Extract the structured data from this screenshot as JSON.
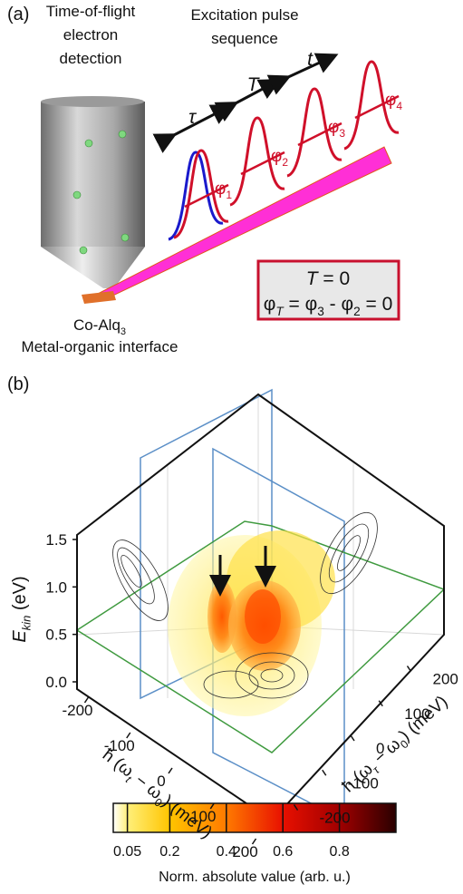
{
  "panel_a": {
    "label": "(a)",
    "detector_label": [
      "Time-of-flight",
      "electron",
      "detection"
    ],
    "pulse_label": [
      "Excitation pulse",
      "sequence"
    ],
    "delays": [
      "τ",
      "T",
      "t"
    ],
    "pulses": [
      {
        "symbol": "φ",
        "index": "1"
      },
      {
        "symbol": "φ",
        "index": "2"
      },
      {
        "symbol": "φ",
        "index": "3"
      },
      {
        "symbol": "φ",
        "index": "4"
      }
    ],
    "condition": {
      "line1": [
        {
          "italic": "T"
        },
        {
          "text": " = 0"
        }
      ],
      "line2": [
        {
          "text": "φ"
        },
        {
          "sub": "T"
        },
        {
          "text": " = φ"
        },
        {
          "sub": "3"
        },
        {
          "text": " - φ"
        },
        {
          "sub": "2"
        },
        {
          "text": " = 0"
        }
      ]
    },
    "sample_label": [
      {
        "text": "Co-Alq"
      },
      {
        "sub": "3"
      }
    ],
    "interface_label": "Metal-organic interface"
  },
  "panel_b": {
    "label": "(b)",
    "z_axis": {
      "label": [
        {
          "italic": "E"
        },
        {
          "sub": "kin"
        },
        {
          "text": " (eV)"
        }
      ],
      "range": [
        0,
        1.5
      ],
      "ticks": [
        {
          "value": 0,
          "label": "0.0"
        },
        {
          "value": 0.5,
          "label": "0.5"
        },
        {
          "value": 1,
          "label": "1.0"
        },
        {
          "value": 1.5,
          "label": "1.5"
        }
      ]
    },
    "t_axis": {
      "label": [
        {
          "text": "ħ (ω"
        },
        {
          "sub": "t"
        },
        {
          "text": " − ω"
        },
        {
          "sub": "0"
        },
        {
          "text": ") (meV)"
        }
      ],
      "ticks": [
        -200,
        -100,
        0,
        100,
        200
      ]
    },
    "tau_axis": {
      "label": [
        {
          "text": "ħ (ω"
        },
        {
          "sub": "τ"
        },
        {
          "text": " − ω"
        },
        {
          "sub": "0"
        },
        {
          "text": ") (meV)"
        }
      ],
      "ticks": [
        -200,
        -100,
        0,
        100,
        200
      ]
    },
    "colorbar": {
      "label": "Norm. absolute value (arb. u.)",
      "range": [
        0,
        1
      ],
      "ticks": [
        0.05,
        0.2,
        0.4,
        0.6,
        0.8
      ]
    }
  }
}
